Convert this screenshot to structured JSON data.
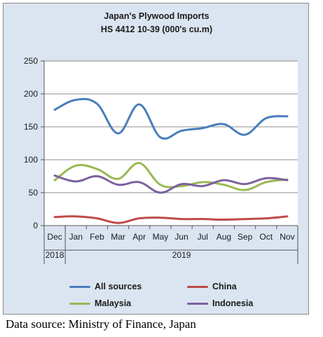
{
  "chart_data": {
    "type": "line",
    "title": "Japan's Plywood Imports",
    "subtitle": "HS 4412 10-39  (000's cu.m)",
    "categories": [
      "Dec",
      "Jan",
      "Feb",
      "Mar",
      "Apr",
      "May",
      "Jun",
      "Jul",
      "Aug",
      "Sep",
      "Oct",
      "Nov"
    ],
    "year_labels": [
      {
        "label": "2018",
        "span": 1
      },
      {
        "label": "2019",
        "span": 11
      }
    ],
    "ylim": [
      0,
      250
    ],
    "yticks": [
      0,
      50,
      100,
      150,
      200,
      250
    ],
    "grid": true,
    "legend_position": "bottom",
    "series": [
      {
        "name": "All sources",
        "color": "#4a7ebb",
        "values": [
          176,
          191,
          185,
          140,
          184,
          134,
          144,
          148,
          154,
          138,
          163,
          166
        ]
      },
      {
        "name": "China",
        "color": "#be4b48",
        "values": [
          13,
          14,
          11,
          4,
          11,
          12,
          10,
          10,
          9,
          10,
          11,
          14
        ]
      },
      {
        "name": "Malaysia",
        "color": "#98b954",
        "values": [
          69,
          91,
          86,
          71,
          95,
          62,
          60,
          66,
          62,
          54,
          66,
          70
        ]
      },
      {
        "name": "Indonesia",
        "color": "#7d60a0",
        "values": [
          76,
          67,
          75,
          62,
          66,
          50,
          63,
          60,
          69,
          63,
          72,
          69
        ]
      }
    ]
  },
  "source_text": "Data source: Ministry of Finance, Japan"
}
